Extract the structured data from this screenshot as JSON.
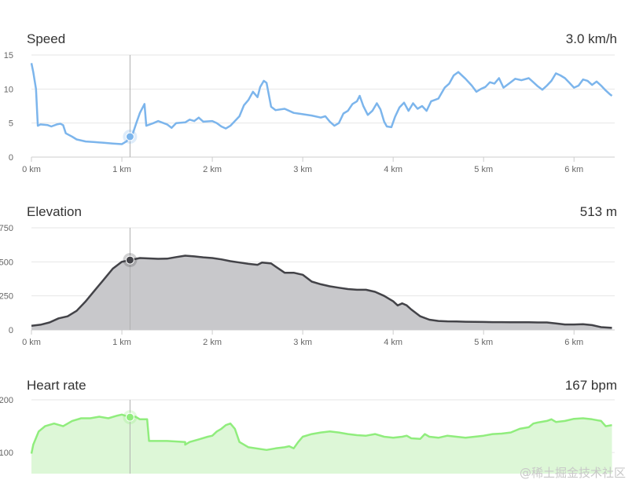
{
  "chart_data": [
    {
      "type": "line",
      "title": "Speed",
      "readout": "3.0 km/h",
      "xlabel": "",
      "ylabel": "",
      "xlim": [
        0,
        6.45
      ],
      "ylim": [
        0,
        15
      ],
      "x_ticks": [
        0,
        1,
        2,
        3,
        4,
        5,
        6
      ],
      "x_tick_labels": [
        "0 km",
        "1 km",
        "2 km",
        "3 km",
        "4 km",
        "5 km",
        "6 km"
      ],
      "y_ticks": [
        0,
        5,
        10,
        15
      ],
      "y_tick_labels": [
        "0",
        "5",
        "10",
        "15"
      ],
      "color": "#7cb5ec",
      "fill": false,
      "marker": {
        "x": 1.09,
        "y": 3.0
      },
      "grid": true,
      "points": [
        [
          0,
          13.8
        ],
        [
          0.02,
          12.5
        ],
        [
          0.05,
          10
        ],
        [
          0.07,
          4.6
        ],
        [
          0.1,
          4.8
        ],
        [
          0.18,
          4.7
        ],
        [
          0.22,
          4.5
        ],
        [
          0.28,
          4.8
        ],
        [
          0.32,
          4.9
        ],
        [
          0.35,
          4.7
        ],
        [
          0.38,
          3.5
        ],
        [
          0.45,
          3.0
        ],
        [
          0.5,
          2.6
        ],
        [
          0.6,
          2.3
        ],
        [
          0.7,
          2.2
        ],
        [
          0.8,
          2.1
        ],
        [
          0.9,
          2.0
        ],
        [
          1.0,
          1.9
        ],
        [
          1.05,
          2.3
        ],
        [
          1.09,
          3.0
        ],
        [
          1.12,
          3.4
        ],
        [
          1.16,
          5.0
        ],
        [
          1.2,
          6.5
        ],
        [
          1.25,
          7.8
        ],
        [
          1.27,
          4.6
        ],
        [
          1.35,
          5.0
        ],
        [
          1.4,
          5.3
        ],
        [
          1.5,
          4.8
        ],
        [
          1.55,
          4.3
        ],
        [
          1.6,
          5.0
        ],
        [
          1.7,
          5.1
        ],
        [
          1.75,
          5.5
        ],
        [
          1.8,
          5.3
        ],
        [
          1.85,
          5.8
        ],
        [
          1.9,
          5.2
        ],
        [
          2.0,
          5.3
        ],
        [
          2.05,
          5.0
        ],
        [
          2.1,
          4.5
        ],
        [
          2.15,
          4.2
        ],
        [
          2.2,
          4.6
        ],
        [
          2.25,
          5.3
        ],
        [
          2.3,
          6.0
        ],
        [
          2.35,
          7.6
        ],
        [
          2.4,
          8.4
        ],
        [
          2.45,
          9.6
        ],
        [
          2.5,
          8.8
        ],
        [
          2.53,
          10.3
        ],
        [
          2.57,
          11.2
        ],
        [
          2.6,
          10.9
        ],
        [
          2.65,
          7.4
        ],
        [
          2.7,
          6.9
        ],
        [
          2.8,
          7.1
        ],
        [
          2.9,
          6.5
        ],
        [
          3.0,
          6.3
        ],
        [
          3.1,
          6.1
        ],
        [
          3.2,
          5.8
        ],
        [
          3.25,
          6.0
        ],
        [
          3.3,
          5.2
        ],
        [
          3.35,
          4.6
        ],
        [
          3.4,
          5.0
        ],
        [
          3.45,
          6.4
        ],
        [
          3.5,
          6.8
        ],
        [
          3.55,
          7.8
        ],
        [
          3.6,
          8.2
        ],
        [
          3.63,
          9.0
        ],
        [
          3.67,
          7.5
        ],
        [
          3.72,
          6.2
        ],
        [
          3.77,
          6.8
        ],
        [
          3.82,
          7.9
        ],
        [
          3.86,
          7.0
        ],
        [
          3.9,
          5.2
        ],
        [
          3.93,
          4.5
        ],
        [
          3.98,
          4.4
        ],
        [
          4.02,
          5.9
        ],
        [
          4.07,
          7.3
        ],
        [
          4.12,
          8.0
        ],
        [
          4.17,
          6.8
        ],
        [
          4.22,
          7.9
        ],
        [
          4.27,
          7.1
        ],
        [
          4.32,
          7.5
        ],
        [
          4.37,
          6.8
        ],
        [
          4.42,
          8.2
        ],
        [
          4.5,
          8.6
        ],
        [
          4.57,
          10.2
        ],
        [
          4.62,
          10.8
        ],
        [
          4.67,
          12.0
        ],
        [
          4.72,
          12.5
        ],
        [
          4.8,
          11.5
        ],
        [
          4.87,
          10.5
        ],
        [
          4.92,
          9.6
        ],
        [
          4.97,
          10.0
        ],
        [
          5.02,
          10.3
        ],
        [
          5.07,
          11.0
        ],
        [
          5.12,
          10.8
        ],
        [
          5.17,
          11.6
        ],
        [
          5.22,
          10.2
        ],
        [
          5.3,
          11.0
        ],
        [
          5.35,
          11.5
        ],
        [
          5.42,
          11.3
        ],
        [
          5.5,
          11.6
        ],
        [
          5.55,
          11.0
        ],
        [
          5.6,
          10.4
        ],
        [
          5.65,
          9.9
        ],
        [
          5.7,
          10.5
        ],
        [
          5.75,
          11.2
        ],
        [
          5.8,
          12.3
        ],
        [
          5.85,
          12.0
        ],
        [
          5.9,
          11.6
        ],
        [
          5.95,
          10.9
        ],
        [
          6.0,
          10.2
        ],
        [
          6.05,
          10.5
        ],
        [
          6.1,
          11.4
        ],
        [
          6.15,
          11.2
        ],
        [
          6.2,
          10.6
        ],
        [
          6.25,
          11.1
        ],
        [
          6.3,
          10.5
        ],
        [
          6.35,
          9.8
        ],
        [
          6.4,
          9.2
        ],
        [
          6.42,
          9.0
        ]
      ]
    },
    {
      "type": "area",
      "title": "Elevation",
      "readout": "513 m",
      "xlabel": "",
      "ylabel": "",
      "xlim": [
        0,
        6.45
      ],
      "ylim": [
        0,
        750
      ],
      "x_ticks": [
        0,
        1,
        2,
        3,
        4,
        5,
        6
      ],
      "x_tick_labels": [
        "0 km",
        "1 km",
        "2 km",
        "3 km",
        "4 km",
        "5 km",
        "6 km"
      ],
      "y_ticks": [
        0,
        250,
        500,
        750
      ],
      "y_tick_labels": [
        "0",
        "250",
        "500",
        "750"
      ],
      "color": "#434348",
      "fill": true,
      "fill_color": "#c8c8cb",
      "marker": {
        "x": 1.09,
        "y": 513
      },
      "grid": true,
      "points": [
        [
          0,
          30
        ],
        [
          0.1,
          38
        ],
        [
          0.2,
          55
        ],
        [
          0.3,
          85
        ],
        [
          0.4,
          100
        ],
        [
          0.5,
          140
        ],
        [
          0.6,
          210
        ],
        [
          0.7,
          290
        ],
        [
          0.8,
          370
        ],
        [
          0.9,
          450
        ],
        [
          1.0,
          500
        ],
        [
          1.09,
          513
        ],
        [
          1.2,
          528
        ],
        [
          1.3,
          525
        ],
        [
          1.4,
          522
        ],
        [
          1.5,
          523
        ],
        [
          1.6,
          535
        ],
        [
          1.7,
          545
        ],
        [
          1.8,
          540
        ],
        [
          1.9,
          533
        ],
        [
          2.0,
          528
        ],
        [
          2.1,
          518
        ],
        [
          2.2,
          505
        ],
        [
          2.3,
          495
        ],
        [
          2.4,
          485
        ],
        [
          2.5,
          478
        ],
        [
          2.55,
          495
        ],
        [
          2.65,
          488
        ],
        [
          2.7,
          465
        ],
        [
          2.8,
          420
        ],
        [
          2.9,
          420
        ],
        [
          3.0,
          405
        ],
        [
          3.1,
          355
        ],
        [
          3.2,
          335
        ],
        [
          3.3,
          320
        ],
        [
          3.4,
          310
        ],
        [
          3.5,
          300
        ],
        [
          3.6,
          295
        ],
        [
          3.7,
          295
        ],
        [
          3.8,
          280
        ],
        [
          3.9,
          250
        ],
        [
          4.0,
          210
        ],
        [
          4.05,
          180
        ],
        [
          4.1,
          195
        ],
        [
          4.15,
          180
        ],
        [
          4.2,
          150
        ],
        [
          4.3,
          100
        ],
        [
          4.4,
          75
        ],
        [
          4.5,
          66
        ],
        [
          4.6,
          63
        ],
        [
          4.7,
          62
        ],
        [
          4.8,
          60
        ],
        [
          4.9,
          59
        ],
        [
          5.0,
          58
        ],
        [
          5.1,
          57
        ],
        [
          5.2,
          57
        ],
        [
          5.3,
          56
        ],
        [
          5.4,
          56
        ],
        [
          5.5,
          56
        ],
        [
          5.6,
          55
        ],
        [
          5.7,
          55
        ],
        [
          5.8,
          48
        ],
        [
          5.9,
          40
        ],
        [
          6.0,
          40
        ],
        [
          6.1,
          42
        ],
        [
          6.2,
          35
        ],
        [
          6.3,
          20
        ],
        [
          6.42,
          15
        ]
      ]
    },
    {
      "type": "area",
      "title": "Heart rate",
      "readout": "167 bpm",
      "xlabel": "",
      "ylabel": "",
      "xlim": [
        0,
        6.45
      ],
      "ylim": [
        60,
        200
      ],
      "x_ticks": [
        0,
        1,
        2,
        3,
        4,
        5,
        6
      ],
      "x_tick_labels": [],
      "y_ticks": [
        100,
        200
      ],
      "y_tick_labels": [
        "100",
        "200"
      ],
      "color": "#90ed7d",
      "fill": true,
      "fill_color": "#ddf7d7",
      "marker": {
        "x": 1.09,
        "y": 167
      },
      "grid": true,
      "points": [
        [
          0,
          98
        ],
        [
          0.02,
          115
        ],
        [
          0.08,
          140
        ],
        [
          0.15,
          150
        ],
        [
          0.25,
          155
        ],
        [
          0.35,
          150
        ],
        [
          0.45,
          160
        ],
        [
          0.55,
          165
        ],
        [
          0.65,
          165
        ],
        [
          0.75,
          168
        ],
        [
          0.85,
          165
        ],
        [
          0.95,
          170
        ],
        [
          1.0,
          172
        ],
        [
          1.09,
          167
        ],
        [
          1.15,
          168
        ],
        [
          1.2,
          163
        ],
        [
          1.28,
          163
        ],
        [
          1.3,
          122
        ],
        [
          1.5,
          122
        ],
        [
          1.7,
          120
        ],
        [
          1.7,
          115
        ],
        [
          1.75,
          120
        ],
        [
          1.85,
          125
        ],
        [
          1.95,
          130
        ],
        [
          2.0,
          132
        ],
        [
          2.05,
          140
        ],
        [
          2.1,
          145
        ],
        [
          2.15,
          152
        ],
        [
          2.2,
          155
        ],
        [
          2.25,
          145
        ],
        [
          2.3,
          120
        ],
        [
          2.4,
          110
        ],
        [
          2.6,
          105
        ],
        [
          2.7,
          108
        ],
        [
          2.8,
          110
        ],
        [
          2.85,
          112
        ],
        [
          2.9,
          108
        ],
        [
          2.95,
          120
        ],
        [
          3.0,
          130
        ],
        [
          3.1,
          135
        ],
        [
          3.2,
          138
        ],
        [
          3.3,
          140
        ],
        [
          3.4,
          138
        ],
        [
          3.5,
          135
        ],
        [
          3.6,
          133
        ],
        [
          3.7,
          132
        ],
        [
          3.8,
          135
        ],
        [
          3.9,
          130
        ],
        [
          4.0,
          128
        ],
        [
          4.1,
          130
        ],
        [
          4.15,
          132
        ],
        [
          4.2,
          127
        ],
        [
          4.3,
          126
        ],
        [
          4.35,
          135
        ],
        [
          4.4,
          130
        ],
        [
          4.5,
          128
        ],
        [
          4.6,
          132
        ],
        [
          4.7,
          130
        ],
        [
          4.8,
          128
        ],
        [
          4.9,
          130
        ],
        [
          5.0,
          132
        ],
        [
          5.1,
          135
        ],
        [
          5.2,
          136
        ],
        [
          5.3,
          138
        ],
        [
          5.4,
          145
        ],
        [
          5.5,
          148
        ],
        [
          5.55,
          155
        ],
        [
          5.6,
          157
        ],
        [
          5.7,
          160
        ],
        [
          5.75,
          163
        ],
        [
          5.8,
          158
        ],
        [
          5.9,
          160
        ],
        [
          6.0,
          164
        ],
        [
          6.1,
          165
        ],
        [
          6.2,
          163
        ],
        [
          6.3,
          160
        ],
        [
          6.35,
          150
        ],
        [
          6.42,
          152
        ]
      ]
    }
  ],
  "watermark": "@稀土掘金技术社区"
}
